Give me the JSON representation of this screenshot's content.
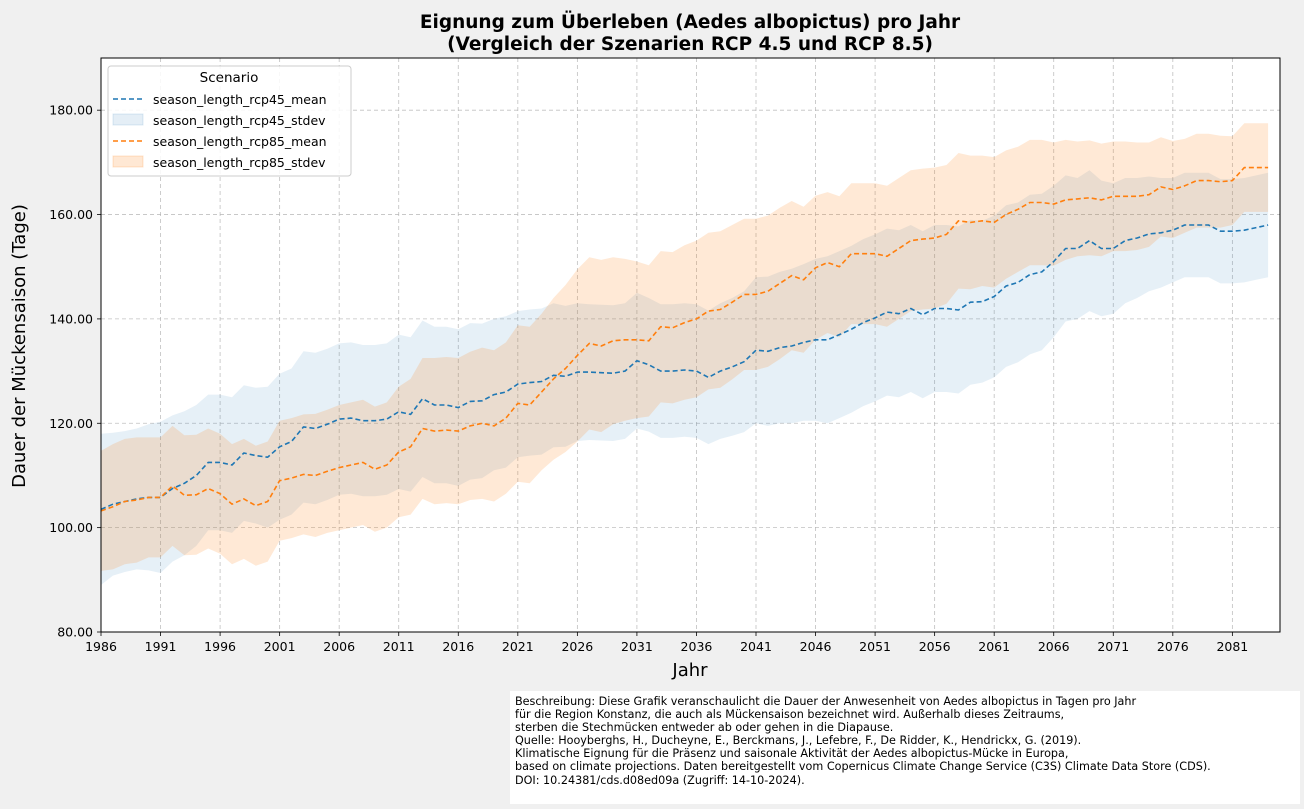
{
  "chart_data": {
    "type": "line",
    "title_line1": "Eignung zum Überleben (Aedes albopictus) pro Jahr",
    "title_line2": "(Vergleich der Szenarien RCP 4.5 und RCP 8.5)",
    "xlabel": "Jahr",
    "ylabel": "Dauer der Mückensaison (Tage)",
    "xlim": [
      1986,
      2085
    ],
    "ylim": [
      80,
      190
    ],
    "yticks": [
      80,
      100,
      120,
      140,
      160,
      180
    ],
    "ytick_labels": [
      "80.00",
      "100.00",
      "120.00",
      "140.00",
      "160.00",
      "180.00"
    ],
    "xticks": [
      1986,
      1991,
      1996,
      2001,
      2006,
      2011,
      2016,
      2021,
      2026,
      2031,
      2036,
      2041,
      2046,
      2051,
      2056,
      2061,
      2066,
      2071,
      2076,
      2081
    ],
    "xtick_labels": [
      "1986",
      "1991",
      "1996",
      "2001",
      "2006",
      "2011",
      "2016",
      "2021",
      "2026",
      "2031",
      "2036",
      "2041",
      "2046",
      "2051",
      "2056",
      "2061",
      "2066",
      "2071",
      "2076",
      "2081"
    ],
    "grid": true,
    "legend": {
      "title": "Scenario",
      "placement": "top-left",
      "entries": [
        {
          "label": "season_length_rcp45_mean",
          "kind": "line",
          "color": "#1f77b4"
        },
        {
          "label": "season_length_rcp45_stdev",
          "kind": "band",
          "color": "#1f77b4"
        },
        {
          "label": "season_length_rcp85_mean",
          "kind": "line",
          "color": "#ff7f0e"
        },
        {
          "label": "season_length_rcp85_stdev",
          "kind": "band",
          "color": "#ff7f0e"
        }
      ]
    },
    "series": [
      {
        "name": "season_length_rcp45",
        "color": "#1f77b4",
        "x_start": 1986,
        "mean": [
          103.5,
          104.5,
          105.0,
          105.5,
          105.8,
          105.8,
          107.5,
          108.5,
          110.0,
          112.5,
          112.5,
          112.0,
          114.3,
          113.8,
          113.5,
          115.5,
          116.5,
          119.3,
          119.0,
          119.8,
          120.8,
          121.0,
          120.5,
          120.5,
          120.8,
          122.2,
          121.7,
          124.7,
          123.5,
          123.5,
          123.0,
          124.2,
          124.3,
          125.5,
          126.0,
          127.5,
          127.8,
          128.0,
          129.2,
          129.0,
          129.8,
          129.8,
          129.7,
          129.6,
          130.0,
          132.0,
          131.2,
          130.0,
          130.0,
          130.2,
          130.0,
          128.8,
          130.0,
          130.8,
          131.8,
          134.0,
          133.8,
          134.5,
          134.8,
          135.5,
          136.0,
          136.0,
          137.0,
          138.0,
          139.3,
          140.2,
          141.3,
          141.0,
          142.0,
          140.8,
          142.0,
          142.0,
          141.7,
          143.2,
          143.3,
          144.3,
          146.3,
          147.0,
          148.5,
          149.0,
          151.0,
          153.5,
          153.5,
          155.0,
          153.5,
          153.5,
          155.0,
          155.5,
          156.3,
          156.5,
          157.0,
          158.0,
          158.0,
          158.0,
          156.8,
          156.8,
          157.0,
          157.5,
          158.0
        ],
        "stdev": [
          14.5,
          13.7,
          13.5,
          13.5,
          14.0,
          14.5,
          14.0,
          13.8,
          13.5,
          13.0,
          13.0,
          13.0,
          13.0,
          13.0,
          13.5,
          14.0,
          14.0,
          14.5,
          14.5,
          14.5,
          14.5,
          14.5,
          14.5,
          14.5,
          14.5,
          14.8,
          14.8,
          15.0,
          15.0,
          15.0,
          15.0,
          15.0,
          14.8,
          14.5,
          14.5,
          14.0,
          14.0,
          14.0,
          13.8,
          13.5,
          13.2,
          13.0,
          13.0,
          13.0,
          13.0,
          13.0,
          12.8,
          12.8,
          12.8,
          12.8,
          12.8,
          12.8,
          13.0,
          13.2,
          13.5,
          14.0,
          14.3,
          14.5,
          14.8,
          15.0,
          15.5,
          16.0,
          16.0,
          16.0,
          16.0,
          16.0,
          16.0,
          16.0,
          16.0,
          16.0,
          16.0,
          16.0,
          16.0,
          15.8,
          15.5,
          15.5,
          15.5,
          15.3,
          15.3,
          15.0,
          14.5,
          14.0,
          13.5,
          13.5,
          13.0,
          12.5,
          12.0,
          11.5,
          11.0,
          10.5,
          10.0,
          10.0,
          10.0,
          10.0,
          10.0,
          10.0,
          10.0,
          10.0,
          10.0
        ]
      },
      {
        "name": "season_length_rcp85",
        "color": "#ff7f0e",
        "x_start": 1986,
        "mean": [
          103.2,
          104.0,
          105.0,
          105.3,
          105.8,
          105.8,
          108.0,
          106.2,
          106.3,
          107.5,
          106.5,
          104.5,
          105.5,
          104.2,
          105.0,
          109.0,
          109.5,
          110.2,
          110.0,
          110.8,
          111.5,
          112.0,
          112.5,
          111.2,
          112.0,
          114.5,
          115.5,
          119.0,
          118.5,
          118.7,
          118.5,
          119.5,
          120.0,
          119.5,
          121.0,
          123.8,
          123.5,
          126.0,
          128.5,
          130.5,
          133.0,
          135.3,
          134.8,
          135.8,
          136.0,
          136.0,
          135.8,
          138.5,
          138.3,
          139.3,
          140.0,
          141.5,
          141.8,
          143.2,
          144.7,
          144.7,
          145.3,
          146.8,
          148.3,
          147.5,
          149.8,
          150.8,
          150.0,
          152.5,
          152.5,
          152.5,
          152.0,
          153.5,
          155.0,
          155.3,
          155.5,
          156.2,
          158.8,
          158.5,
          158.8,
          158.5,
          160.0,
          161.0,
          162.3,
          162.3,
          162.0,
          162.8,
          163.0,
          163.2,
          162.8,
          163.5,
          163.5,
          163.5,
          163.8,
          165.3,
          164.8,
          165.5,
          166.5,
          166.5,
          166.3,
          166.5,
          169.0,
          169.0,
          169.0
        ],
        "stdev": [
          11.5,
          12.0,
          12.0,
          12.0,
          11.5,
          11.5,
          11.5,
          11.5,
          11.5,
          11.5,
          11.5,
          11.5,
          11.5,
          11.5,
          11.5,
          11.5,
          11.5,
          11.5,
          11.8,
          11.8,
          12.0,
          12.0,
          12.0,
          12.0,
          12.0,
          12.5,
          13.0,
          13.5,
          14.0,
          14.0,
          14.0,
          14.2,
          14.5,
          14.5,
          14.5,
          15.0,
          15.0,
          15.0,
          15.5,
          16.0,
          16.5,
          16.5,
          16.5,
          16.0,
          15.5,
          15.0,
          14.5,
          14.5,
          14.5,
          14.8,
          15.0,
          15.0,
          15.0,
          14.8,
          14.5,
          14.5,
          14.5,
          14.5,
          14.3,
          14.0,
          13.8,
          13.5,
          13.5,
          13.5,
          13.5,
          13.5,
          13.5,
          13.5,
          13.5,
          13.5,
          13.5,
          13.3,
          13.0,
          12.8,
          12.5,
          12.5,
          12.3,
          12.0,
          12.0,
          12.0,
          11.8,
          11.5,
          11.0,
          11.0,
          10.8,
          10.5,
          10.5,
          10.3,
          10.0,
          9.5,
          9.3,
          9.0,
          9.0,
          9.0,
          8.8,
          8.5,
          8.5,
          8.5,
          8.5
        ]
      }
    ]
  },
  "description": {
    "lines": [
      "Beschreibung: Diese Grafik veranschaulicht die Dauer der Anwesenheit von Aedes albopictus in Tagen pro Jahr",
      "für die Region Konstanz, die auch als Mückensaison bezeichnet wird. Außerhalb dieses Zeitraums,",
      "sterben die Stechmücken entweder ab oder gehen in die Diapause.",
      "Quelle: Hooyberghs, H., Ducheyne, E., Berckmans, J., Lefebre, F., De Ridder, K., Hendrickx, G. (2019).",
      "Klimatische Eignung für die Präsenz und saisonale Aktivität der Aedes albopictus-Mücke in Europa,",
      "based on climate projections. Daten bereitgestellt vom Copernicus Climate Change Service (C3S) Climate Data Store (CDS).",
      "DOI: 10.24381/cds.d08ed09a (Zugriff: 14-10-2024)."
    ]
  }
}
